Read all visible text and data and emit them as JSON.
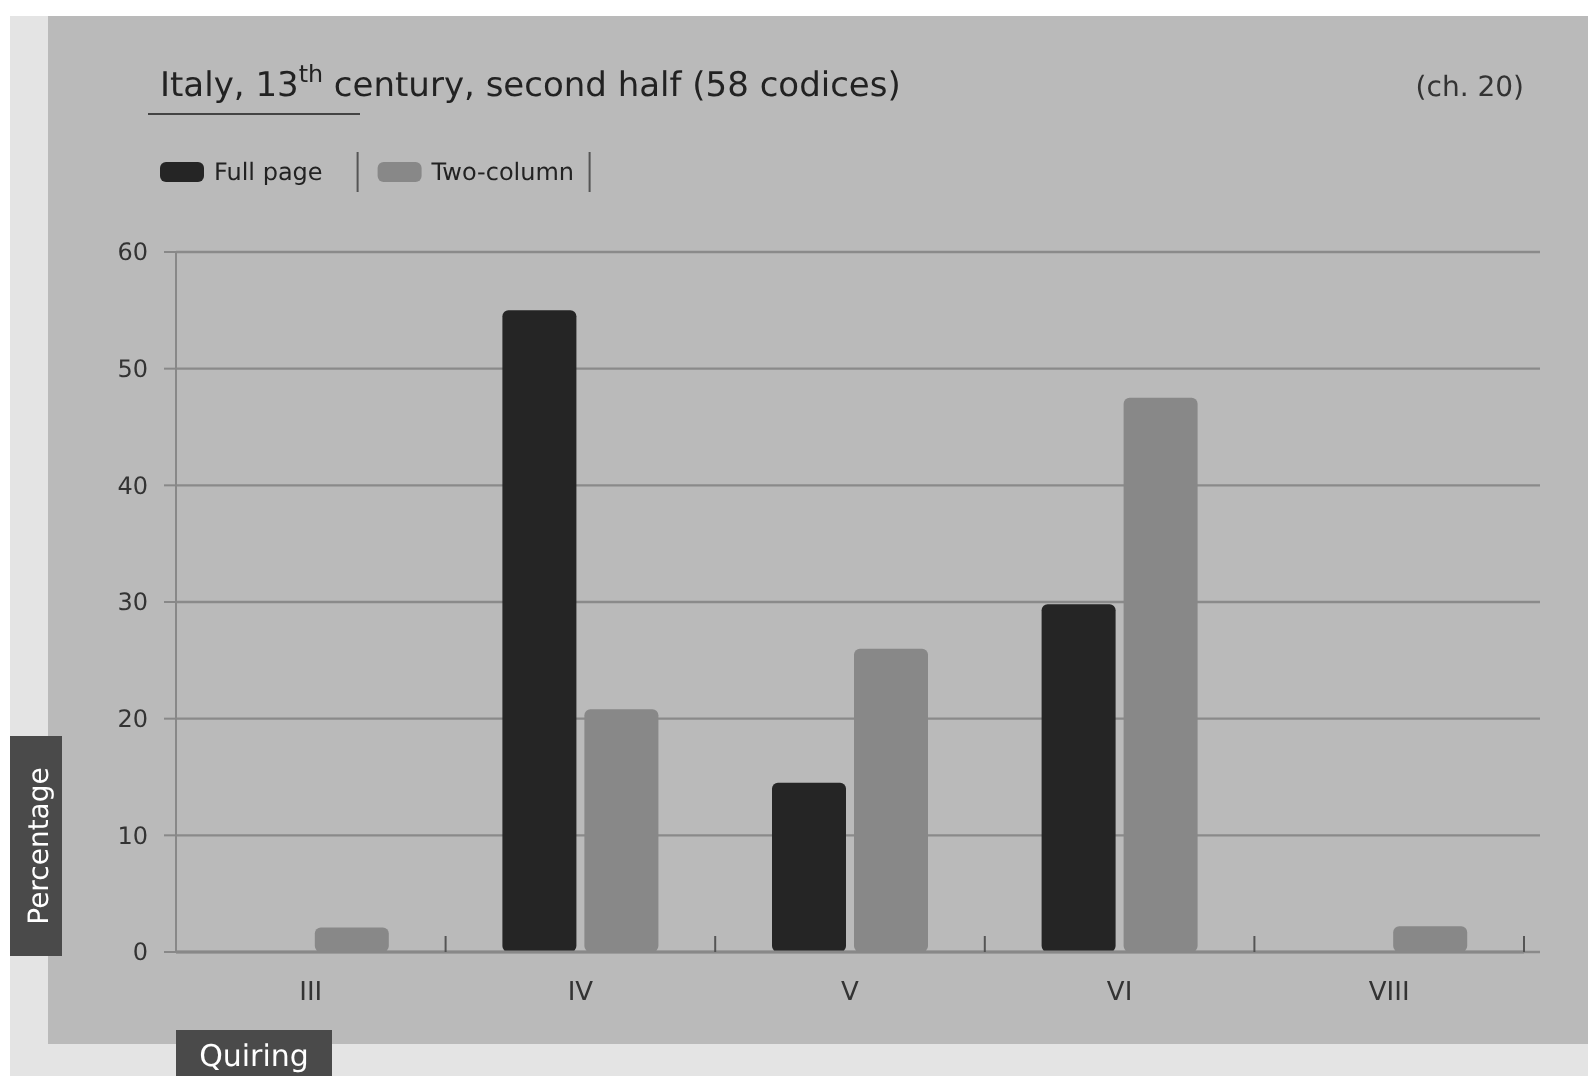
{
  "chart_data": {
    "type": "bar",
    "title": "Italy, 13$^{th}$ century, second half (58 codices)",
    "annotations": [
      "(ch. 20)"
    ],
    "xlabel": "Quiring",
    "ylabel": "Percentage",
    "categories": [
      "III",
      "IV",
      "V",
      "VI",
      "VIII"
    ],
    "series": [
      {
        "name": "Full page",
        "color": "#252525",
        "values": [
          0,
          55,
          14.5,
          29.8,
          0
        ]
      },
      {
        "name": "Two-column",
        "color": "#888888",
        "values": [
          2.1,
          20.8,
          26,
          47.5,
          2.2
        ]
      }
    ],
    "ylim": [
      0,
      60
    ],
    "yticks": [
      0,
      10,
      20,
      30,
      40,
      50,
      60
    ],
    "grid": "y",
    "legend": "top left"
  }
}
